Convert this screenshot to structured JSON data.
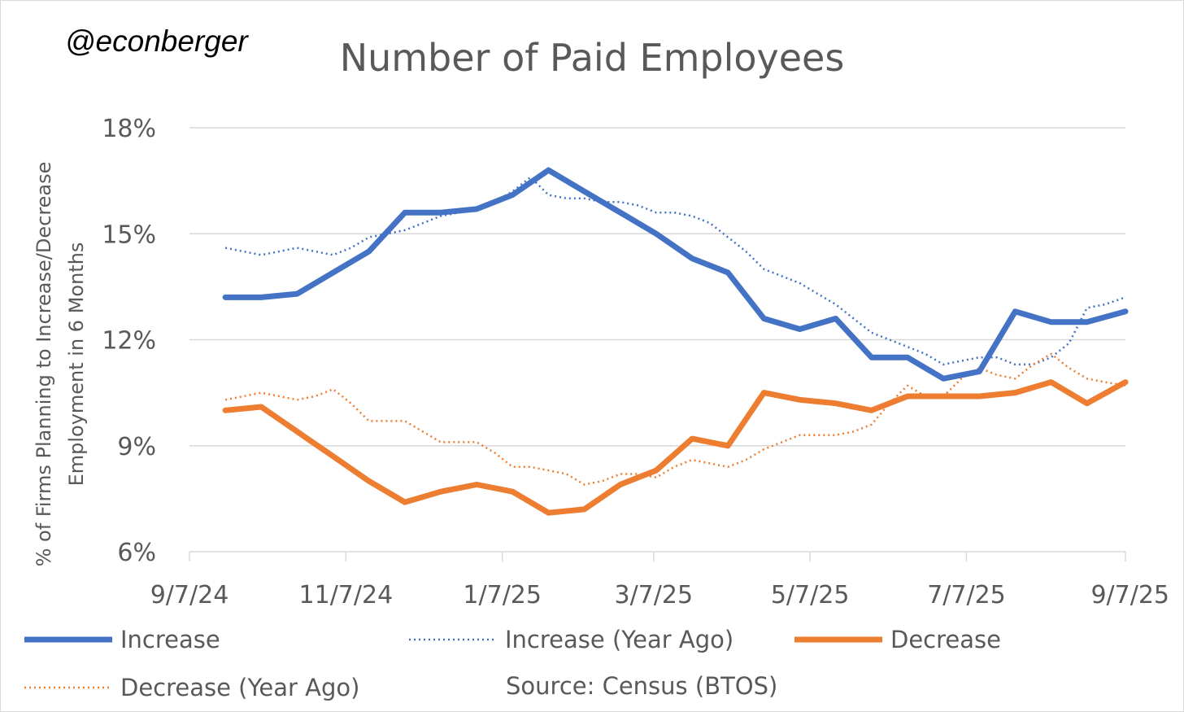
{
  "handle": "@econberger",
  "source": "Source: Census (BTOS)",
  "colors": {
    "increase": "#4472C4",
    "decrease": "#ED7D31",
    "grid": "#d9d9d9",
    "text": "#595959"
  },
  "chart_data": {
    "type": "line",
    "title": "Number of Paid Employees",
    "xlabel": "",
    "ylabel_lines": [
      "% of Firms Planning to Increase/Decrease",
      "Employment in 6 Months"
    ],
    "ylim": [
      6,
      18
    ],
    "yticks": [
      6,
      9,
      12,
      15,
      18
    ],
    "ytick_labels": [
      "6%",
      "9%",
      "12%",
      "15%",
      "18%"
    ],
    "x_is_day_offset_from": "9/7/24",
    "x_range": [
      0,
      365
    ],
    "xticks": [
      0,
      61,
      122,
      181,
      242,
      303,
      365
    ],
    "xtick_labels": [
      "9/7/24",
      "11/7/24",
      "1/7/25",
      "3/7/25",
      "5/7/25",
      "7/7/25",
      "9/7/25"
    ],
    "series": [
      {
        "name": "Increase",
        "style": "solid",
        "color": "#4472C4",
        "x": [
          14,
          28,
          42,
          56,
          70,
          84,
          98,
          112,
          126,
          140,
          154,
          168,
          182,
          196,
          210,
          224,
          238,
          252,
          266,
          280,
          294,
          308,
          322,
          336,
          350,
          365
        ],
        "y": [
          13.2,
          13.2,
          13.3,
          13.9,
          14.5,
          15.6,
          15.6,
          15.7,
          16.1,
          16.8,
          16.2,
          15.6,
          15.0,
          14.3,
          13.9,
          12.6,
          12.3,
          12.6,
          11.5,
          11.5,
          10.9,
          11.1,
          12.8,
          12.5,
          12.5,
          12.8
        ]
      },
      {
        "name": "Increase (Year Ago)",
        "style": "dotted",
        "color": "#4472C4",
        "x": [
          14,
          21,
          28,
          35,
          42,
          49,
          56,
          63,
          70,
          77,
          84,
          91,
          98,
          105,
          112,
          119,
          126,
          133,
          140,
          147,
          154,
          161,
          168,
          175,
          182,
          189,
          196,
          203,
          210,
          217,
          224,
          231,
          238,
          245,
          252,
          259,
          266,
          273,
          280,
          287,
          294,
          301,
          308,
          315,
          322,
          329,
          336,
          343,
          350,
          357,
          365
        ],
        "y": [
          14.6,
          14.5,
          14.4,
          14.5,
          14.6,
          14.5,
          14.4,
          14.6,
          14.9,
          15.0,
          15.1,
          15.3,
          15.5,
          15.6,
          15.7,
          15.9,
          16.2,
          16.6,
          16.1,
          16.0,
          16.0,
          15.9,
          15.9,
          15.8,
          15.6,
          15.6,
          15.5,
          15.3,
          14.9,
          14.5,
          14.0,
          13.8,
          13.6,
          13.3,
          13.0,
          12.6,
          12.2,
          12.0,
          11.8,
          11.6,
          11.3,
          11.4,
          11.5,
          11.5,
          11.3,
          11.3,
          11.5,
          11.9,
          12.9,
          13.0,
          13.2
        ]
      },
      {
        "name": "Decrease",
        "style": "solid",
        "color": "#ED7D31",
        "x": [
          14,
          28,
          42,
          56,
          70,
          84,
          98,
          112,
          126,
          140,
          154,
          168,
          182,
          196,
          210,
          224,
          238,
          252,
          266,
          280,
          294,
          308,
          322,
          336,
          350,
          365
        ],
        "y": [
          10.0,
          10.1,
          9.4,
          8.7,
          8.0,
          7.4,
          7.7,
          7.9,
          7.7,
          7.1,
          7.2,
          7.9,
          8.3,
          9.2,
          9.0,
          10.5,
          10.3,
          10.2,
          10.0,
          10.4,
          10.4,
          10.4,
          10.5,
          10.8,
          10.2,
          10.8
        ]
      },
      {
        "name": "Decrease (Year Ago)",
        "style": "dotted",
        "color": "#ED7D31",
        "x": [
          14,
          21,
          28,
          35,
          42,
          49,
          56,
          63,
          70,
          77,
          84,
          91,
          98,
          105,
          112,
          119,
          126,
          133,
          140,
          147,
          154,
          161,
          168,
          175,
          182,
          189,
          196,
          203,
          210,
          217,
          224,
          231,
          238,
          245,
          252,
          259,
          266,
          273,
          280,
          287,
          294,
          301,
          308,
          315,
          322,
          329,
          336,
          343,
          350,
          357,
          365
        ],
        "y": [
          10.3,
          10.4,
          10.5,
          10.4,
          10.3,
          10.4,
          10.6,
          10.2,
          9.7,
          9.7,
          9.7,
          9.4,
          9.1,
          9.1,
          9.1,
          8.8,
          8.4,
          8.4,
          8.3,
          8.2,
          7.9,
          8.0,
          8.2,
          8.2,
          8.1,
          8.4,
          8.6,
          8.5,
          8.4,
          8.6,
          8.9,
          9.1,
          9.3,
          9.3,
          9.3,
          9.4,
          9.6,
          10.2,
          10.7,
          10.4,
          10.4,
          10.9,
          11.2,
          11.0,
          10.9,
          11.3,
          11.6,
          11.2,
          10.9,
          10.8,
          10.7
        ]
      }
    ]
  }
}
